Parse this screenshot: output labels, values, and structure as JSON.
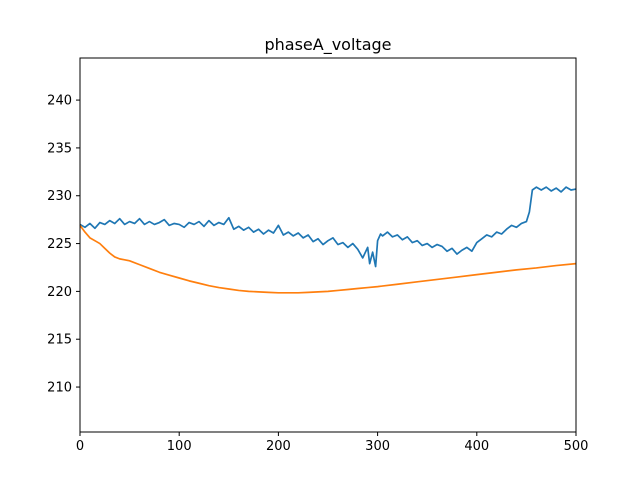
{
  "chart_data": {
    "type": "line",
    "title": "phaseA_voltage",
    "xlabel": "",
    "ylabel": "",
    "xlim": [
      0,
      500
    ],
    "ylim": [
      205.3,
      244.4
    ],
    "grid": false,
    "xticks": [
      0,
      100,
      200,
      300,
      400,
      500
    ],
    "yticks": [
      210,
      215,
      220,
      225,
      230,
      235,
      240
    ],
    "series": [
      {
        "color": "#1f77b4",
        "points": [
          [
            0,
            227.0
          ],
          [
            5,
            226.7
          ],
          [
            10,
            227.1
          ],
          [
            15,
            226.6
          ],
          [
            20,
            227.2
          ],
          [
            25,
            227.0
          ],
          [
            30,
            227.4
          ],
          [
            35,
            227.1
          ],
          [
            40,
            227.6
          ],
          [
            45,
            227.0
          ],
          [
            50,
            227.3
          ],
          [
            55,
            227.1
          ],
          [
            60,
            227.6
          ],
          [
            65,
            227.0
          ],
          [
            70,
            227.3
          ],
          [
            75,
            227.0
          ],
          [
            80,
            227.2
          ],
          [
            85,
            227.5
          ],
          [
            90,
            226.9
          ],
          [
            95,
            227.1
          ],
          [
            100,
            227.0
          ],
          [
            105,
            226.7
          ],
          [
            110,
            227.2
          ],
          [
            115,
            227.0
          ],
          [
            120,
            227.3
          ],
          [
            125,
            226.8
          ],
          [
            130,
            227.4
          ],
          [
            135,
            226.9
          ],
          [
            140,
            227.2
          ],
          [
            145,
            227.0
          ],
          [
            150,
            227.7
          ],
          [
            155,
            226.5
          ],
          [
            160,
            226.8
          ],
          [
            165,
            226.4
          ],
          [
            170,
            226.7
          ],
          [
            175,
            226.2
          ],
          [
            180,
            226.5
          ],
          [
            185,
            226.0
          ],
          [
            190,
            226.4
          ],
          [
            195,
            226.1
          ],
          [
            200,
            226.9
          ],
          [
            205,
            225.9
          ],
          [
            210,
            226.2
          ],
          [
            215,
            225.8
          ],
          [
            220,
            226.1
          ],
          [
            225,
            225.6
          ],
          [
            230,
            225.9
          ],
          [
            235,
            225.2
          ],
          [
            240,
            225.5
          ],
          [
            245,
            224.9
          ],
          [
            250,
            225.3
          ],
          [
            255,
            225.6
          ],
          [
            260,
            224.9
          ],
          [
            265,
            225.1
          ],
          [
            270,
            224.6
          ],
          [
            275,
            225.0
          ],
          [
            280,
            224.4
          ],
          [
            285,
            223.5
          ],
          [
            290,
            224.6
          ],
          [
            292,
            222.9
          ],
          [
            295,
            224.1
          ],
          [
            298,
            222.6
          ],
          [
            300,
            225.3
          ],
          [
            303,
            226.0
          ],
          [
            305,
            225.8
          ],
          [
            310,
            226.2
          ],
          [
            315,
            225.7
          ],
          [
            320,
            225.9
          ],
          [
            325,
            225.4
          ],
          [
            330,
            225.7
          ],
          [
            335,
            225.1
          ],
          [
            340,
            225.3
          ],
          [
            345,
            224.8
          ],
          [
            350,
            225.0
          ],
          [
            355,
            224.6
          ],
          [
            360,
            224.9
          ],
          [
            365,
            224.7
          ],
          [
            370,
            224.2
          ],
          [
            375,
            224.5
          ],
          [
            380,
            223.9
          ],
          [
            385,
            224.3
          ],
          [
            390,
            224.6
          ],
          [
            395,
            224.2
          ],
          [
            400,
            225.1
          ],
          [
            405,
            225.5
          ],
          [
            410,
            225.9
          ],
          [
            415,
            225.7
          ],
          [
            420,
            226.2
          ],
          [
            425,
            226.0
          ],
          [
            430,
            226.5
          ],
          [
            435,
            226.9
          ],
          [
            440,
            226.7
          ],
          [
            445,
            227.1
          ],
          [
            450,
            227.3
          ],
          [
            453,
            228.3
          ],
          [
            456,
            230.6
          ],
          [
            460,
            230.9
          ],
          [
            465,
            230.6
          ],
          [
            470,
            230.9
          ],
          [
            475,
            230.5
          ],
          [
            480,
            230.8
          ],
          [
            485,
            230.4
          ],
          [
            490,
            230.9
          ],
          [
            495,
            230.6
          ],
          [
            500,
            230.7
          ]
        ]
      },
      {
        "color": "#ff7f0e",
        "points": [
          [
            0,
            226.9
          ],
          [
            5,
            226.2
          ],
          [
            10,
            225.6
          ],
          [
            15,
            225.3
          ],
          [
            20,
            225.0
          ],
          [
            25,
            224.5
          ],
          [
            30,
            224.0
          ],
          [
            35,
            223.6
          ],
          [
            40,
            223.4
          ],
          [
            45,
            223.3
          ],
          [
            50,
            223.2
          ],
          [
            60,
            222.8
          ],
          [
            70,
            222.4
          ],
          [
            80,
            222.0
          ],
          [
            90,
            221.7
          ],
          [
            100,
            221.4
          ],
          [
            110,
            221.1
          ],
          [
            120,
            220.85
          ],
          [
            130,
            220.6
          ],
          [
            140,
            220.4
          ],
          [
            150,
            220.25
          ],
          [
            160,
            220.1
          ],
          [
            170,
            220.0
          ],
          [
            180,
            219.95
          ],
          [
            190,
            219.9
          ],
          [
            200,
            219.85
          ],
          [
            210,
            219.85
          ],
          [
            220,
            219.85
          ],
          [
            230,
            219.9
          ],
          [
            240,
            219.95
          ],
          [
            250,
            220.0
          ],
          [
            260,
            220.1
          ],
          [
            270,
            220.2
          ],
          [
            280,
            220.3
          ],
          [
            290,
            220.4
          ],
          [
            300,
            220.5
          ],
          [
            320,
            220.75
          ],
          [
            340,
            221.0
          ],
          [
            360,
            221.25
          ],
          [
            380,
            221.5
          ],
          [
            400,
            221.75
          ],
          [
            420,
            222.0
          ],
          [
            440,
            222.25
          ],
          [
            460,
            222.45
          ],
          [
            480,
            222.7
          ],
          [
            500,
            222.9
          ]
        ]
      }
    ]
  }
}
